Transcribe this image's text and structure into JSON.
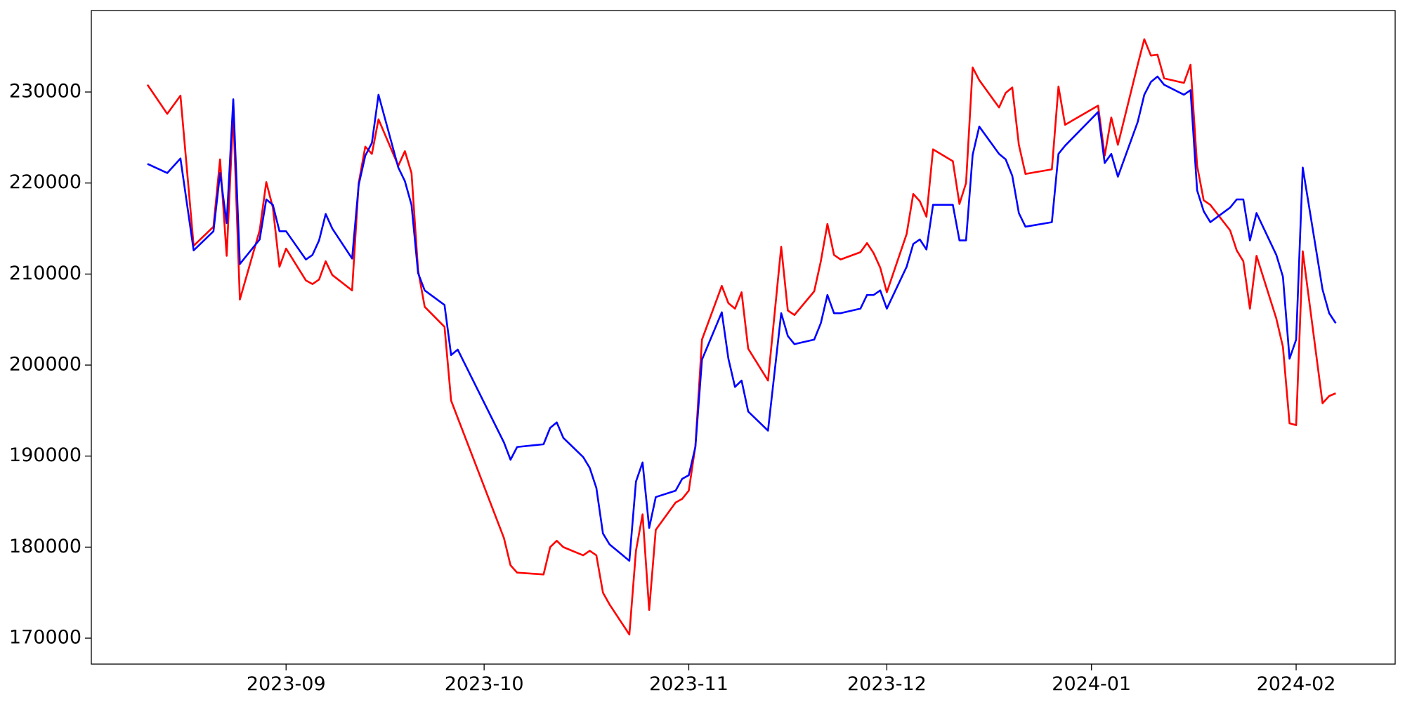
{
  "chart_data": {
    "type": "line",
    "x": [
      19580,
      19583,
      19585,
      19587,
      19590,
      19591,
      19592,
      19593,
      19594,
      19597,
      19598,
      19599,
      19600,
      19601,
      19604,
      19605,
      19606,
      19607,
      19608,
      19611,
      19612,
      19613,
      19614,
      19615,
      19618,
      19619,
      19620,
      19621,
      19622,
      19625,
      19626,
      19627,
      19634,
      19635,
      19636,
      19640,
      19641,
      19642,
      19643,
      19646,
      19647,
      19648,
      19649,
      19650,
      19653,
      19654,
      19655,
      19656,
      19657,
      19660,
      19661,
      19662,
      19663,
      19664,
      19667,
      19668,
      19669,
      19670,
      19671,
      19674,
      19676,
      19677,
      19678,
      19681,
      19682,
      19683,
      19684,
      19685,
      19688,
      19689,
      19690,
      19691,
      19692,
      19695,
      19696,
      19697,
      19698,
      19699,
      19702,
      19703,
      19704,
      19705,
      19706,
      19709,
      19710,
      19711,
      19712,
      19713,
      19717,
      19718,
      19719,
      19724,
      19725,
      19726,
      19727,
      19730,
      19731,
      19732,
      19733,
      19734,
      19737,
      19738,
      19739,
      19740,
      19741,
      19744,
      19745,
      19746,
      19747,
      19748,
      19751,
      19752,
      19753,
      19754,
      19755,
      19758,
      19759,
      19760
    ],
    "series": [
      {
        "color": "#ff0000",
        "values": [
          230800,
          227600,
          229600,
          213100,
          215200,
          222600,
          212000,
          227700,
          207200,
          214800,
          220100,
          217300,
          210800,
          212800,
          209300,
          208900,
          209400,
          211400,
          209900,
          208200,
          220000,
          224000,
          223200,
          227000,
          221900,
          223500,
          221100,
          210400,
          206400,
          204200,
          196100,
          194200,
          181000,
          178000,
          177200,
          177000,
          180000,
          180700,
          180000,
          179100,
          179600,
          179100,
          175000,
          173700,
          170400,
          179600,
          183600,
          173100,
          181900,
          184900,
          185300,
          186200,
          191100,
          202800,
          208700,
          206800,
          206200,
          208000,
          201800,
          198300,
          213000,
          206000,
          205500,
          208100,
          211400,
          215500,
          212100,
          211600,
          212400,
          213400,
          212300,
          210700,
          208000,
          214400,
          218800,
          218000,
          216300,
          223700,
          222400,
          217700,
          220000,
          232700,
          231300,
          228300,
          229900,
          230500,
          224200,
          221000,
          221500,
          230600,
          226400,
          228500,
          223000,
          227200,
          224200,
          233000,
          235800,
          234000,
          234100,
          231500,
          231000,
          233000,
          221900,
          218100,
          217600,
          214800,
          212600,
          211400,
          206200,
          212000,
          205100,
          202000,
          193600,
          193400,
          212500,
          195800,
          196600,
          196900
        ]
      },
      {
        "color": "#0000ff",
        "values": [
          222100,
          221100,
          222700,
          212600,
          214700,
          221100,
          215600,
          229200,
          211100,
          213800,
          218200,
          217600,
          214700,
          214700,
          211600,
          212100,
          213700,
          216600,
          215000,
          211700,
          219800,
          223000,
          224400,
          229700,
          221700,
          220200,
          217600,
          210100,
          208200,
          206600,
          201100,
          201700,
          191500,
          189600,
          191000,
          191300,
          193100,
          193700,
          192000,
          189900,
          188700,
          186500,
          181500,
          180300,
          178500,
          187200,
          189300,
          182100,
          185500,
          186200,
          187500,
          187900,
          191000,
          200600,
          205800,
          200700,
          197600,
          198300,
          194900,
          192800,
          205700,
          203200,
          202300,
          202800,
          204600,
          207700,
          205700,
          205700,
          206200,
          207700,
          207700,
          208200,
          206200,
          210800,
          213300,
          213800,
          212700,
          217600,
          217600,
          213700,
          213700,
          223100,
          226200,
          223200,
          222600,
          220800,
          216700,
          215200,
          215700,
          223200,
          224100,
          227800,
          222200,
          223200,
          220700,
          226700,
          229700,
          231100,
          231700,
          230800,
          229700,
          230200,
          219200,
          216900,
          215700,
          217300,
          218200,
          218200,
          213700,
          216700,
          212100,
          209700,
          200700,
          202800,
          221700,
          208300,
          205700,
          204600
        ]
      }
    ],
    "xlim": [
      19571.5,
      19769
    ],
    "xticks": [
      {
        "value": 19601,
        "label": "2023-09"
      },
      {
        "value": 19631,
        "label": "2023-10"
      },
      {
        "value": 19662,
        "label": "2023-11"
      },
      {
        "value": 19692,
        "label": "2023-12"
      },
      {
        "value": 19723,
        "label": "2024-01"
      },
      {
        "value": 19754,
        "label": "2024-02"
      }
    ],
    "ylim": [
      167150,
      238950
    ],
    "yticks": [
      170000,
      180000,
      190000,
      200000,
      210000,
      220000,
      230000
    ],
    "grid": false
  }
}
